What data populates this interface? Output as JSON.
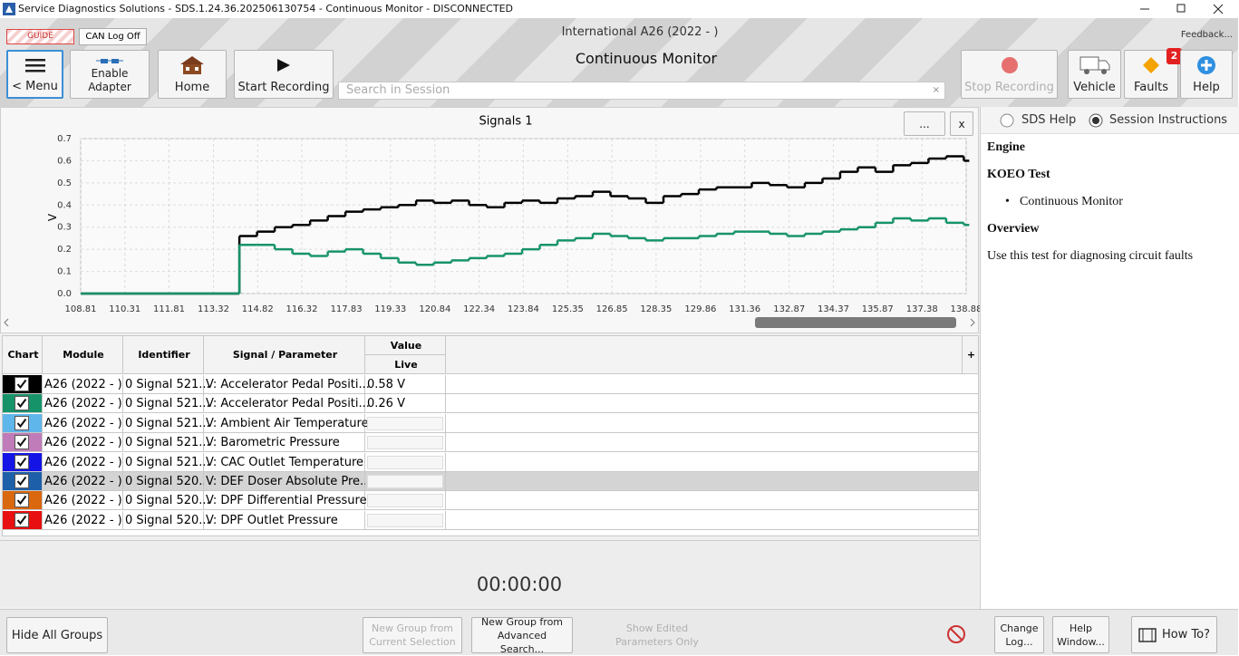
{
  "window": {
    "title": "Service Diagnostics Solutions - SDS.1.24.36.202506130754 - Continuous Monitor - DISCONNECTED"
  },
  "header": {
    "guide": "GUIDE",
    "can_log": "CAN Log Off",
    "vehicle": "International A26 (2022 - )",
    "feedback": "Feedback...",
    "page_title": "Continuous Monitor"
  },
  "toolbar": {
    "menu": "< Menu",
    "enable_adapter": "Enable Adapter",
    "home": "Home",
    "start_recording": "Start Recording",
    "search_placeholder": "Search in Session",
    "stop_recording": "Stop Recording",
    "vehicle": "Vehicle",
    "faults": "Faults",
    "faults_count": 2,
    "help": "Help"
  },
  "chart_panel": {
    "more": "...",
    "close": "x"
  },
  "chart_data": {
    "type": "line",
    "title": "Signals 1",
    "y_label": "V",
    "step": true,
    "grid": true,
    "x": [
      108.81,
      114.2,
      114.8,
      115.4,
      116.0,
      116.6,
      117.2,
      117.8,
      118.4,
      119.0,
      119.6,
      120.2,
      120.8,
      121.4,
      122.0,
      122.6,
      123.2,
      123.8,
      124.4,
      125.0,
      125.6,
      126.2,
      126.8,
      127.4,
      128.0,
      128.6,
      129.2,
      129.8,
      130.4,
      131.0,
      131.6,
      132.2,
      132.8,
      133.4,
      134.0,
      134.6,
      135.2,
      135.8,
      136.4,
      137.0,
      137.6,
      138.2,
      138.8
    ],
    "series": [
      {
        "color": "#000000",
        "values": [
          0,
          0.26,
          0.28,
          0.3,
          0.31,
          0.33,
          0.35,
          0.37,
          0.38,
          0.39,
          0.4,
          0.42,
          0.41,
          0.42,
          0.4,
          0.39,
          0.41,
          0.42,
          0.41,
          0.43,
          0.44,
          0.46,
          0.44,
          0.43,
          0.41,
          0.44,
          0.45,
          0.47,
          0.48,
          0.48,
          0.5,
          0.49,
          0.48,
          0.5,
          0.52,
          0.55,
          0.57,
          0.55,
          0.58,
          0.59,
          0.61,
          0.62,
          0.6
        ]
      },
      {
        "color": "#17936a",
        "values": [
          0,
          0.22,
          0.22,
          0.2,
          0.18,
          0.17,
          0.19,
          0.2,
          0.18,
          0.16,
          0.14,
          0.13,
          0.14,
          0.15,
          0.16,
          0.17,
          0.18,
          0.2,
          0.22,
          0.24,
          0.25,
          0.27,
          0.26,
          0.25,
          0.24,
          0.25,
          0.25,
          0.26,
          0.27,
          0.28,
          0.28,
          0.27,
          0.26,
          0.27,
          0.28,
          0.29,
          0.3,
          0.32,
          0.34,
          0.33,
          0.34,
          0.32,
          0.31
        ]
      }
    ],
    "xlim": [
      108.81,
      138.88
    ],
    "xticks": [
      108.81,
      110.31,
      111.81,
      113.32,
      114.82,
      116.32,
      117.83,
      119.33,
      120.84,
      122.34,
      123.84,
      125.35,
      126.85,
      128.35,
      129.86,
      131.36,
      132.87,
      134.37,
      135.87,
      137.38,
      138.88
    ],
    "ylim": [
      0,
      0.7
    ],
    "yticks": [
      {
        "value": 0,
        "label": "0.0"
      },
      0.1,
      0.2,
      0.3,
      0.4,
      0.5,
      0.6,
      0.7
    ]
  },
  "table": {
    "headers": [
      "Chart",
      "Module",
      "Identifier",
      "Signal / Parameter",
      "Value"
    ],
    "value_subheader": "Live",
    "add": "+",
    "rows": [
      {
        "color": "#000000",
        "module": "A26 (2022 - )",
        "identifier": "0 Signal 521...",
        "signal": "V: Accelerator Pedal Positi...",
        "value": "0.58 V"
      },
      {
        "color": "#17936a",
        "module": "A26 (2022 - )",
        "identifier": "0 Signal 521...",
        "signal": "V: Accelerator Pedal Positi...",
        "value": "0.26 V"
      },
      {
        "color": "#5fb6ea",
        "module": "A26 (2022 - )",
        "identifier": "0 Signal 521...",
        "signal": "V: Ambient Air Temperature"
      },
      {
        "color": "#c07cb8",
        "module": "A26 (2022 - )",
        "identifier": "0 Signal 521...",
        "signal": "V: Barometric Pressure"
      },
      {
        "color": "#1414e6",
        "module": "A26 (2022 - )",
        "identifier": "0 Signal 521...",
        "signal": "V: CAC Outlet Temperature"
      },
      {
        "color": "#1d5fa8",
        "module": "A26 (2022 - )",
        "identifier": "0 Signal 520...",
        "signal": "V: DEF Doser Absolute Pre...",
        "selected": true
      },
      {
        "color": "#d9680f",
        "module": "A26 (2022 - )",
        "identifier": "0 Signal 520...",
        "signal": "V: DPF Differential Pressure"
      },
      {
        "color": "#e81010",
        "module": "A26 (2022 - )",
        "identifier": "0 Signal 520...",
        "signal": "V: DPF Outlet Pressure"
      }
    ]
  },
  "help_panel": {
    "tabs": [
      "SDS Help",
      "Session Instructions"
    ],
    "heading": "Engine",
    "test": "KOEO Test",
    "steps": [
      "Continuous Monitor"
    ],
    "overview_title": "Overview",
    "overview": "Use this test for diagnosing circuit faults"
  },
  "timer": "00:00:00",
  "footer": {
    "hide_groups": "Hide All Groups",
    "new_group_selection": "New Group from Current Selection",
    "new_group_search": "New Group from Advanced Search...",
    "show_edited": "Show Edited Parameters Only",
    "change_log": "Change Log...",
    "help_window": "Help Window...",
    "how_to": "How To?"
  }
}
